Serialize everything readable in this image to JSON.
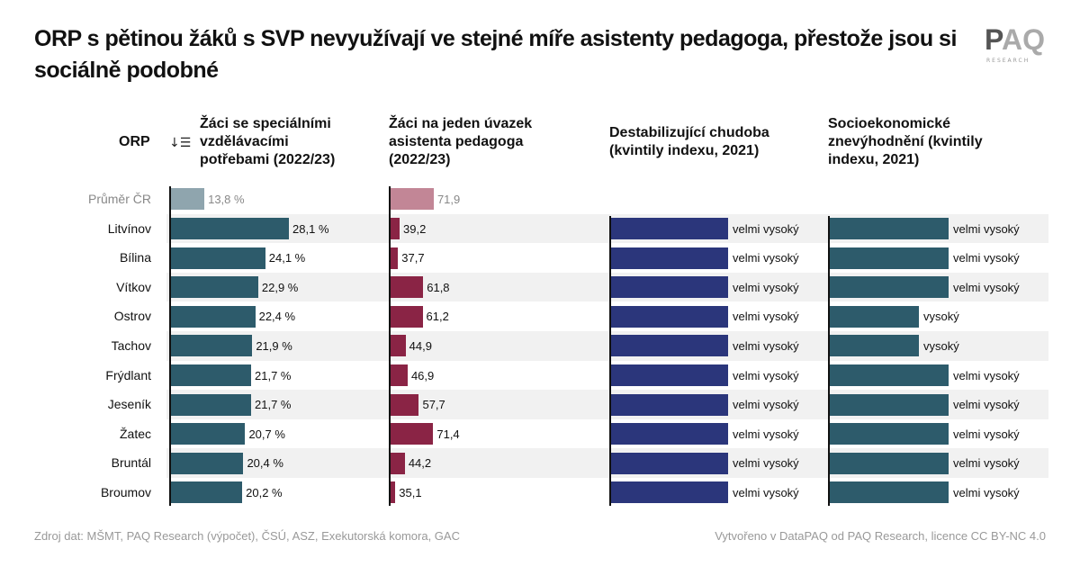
{
  "title": "ORP s pětinou žáků s SVP nevyužívají ve stejné míře asistenty pedagoga, přestože jsou si sociálně podobné",
  "logo": {
    "text": "PAQ",
    "subtext": "RESEARCH"
  },
  "footer": {
    "source": "Zdroj dat: MŠMT, PAQ Research (výpočet), ČSÚ, ASZ, Exekutorská komora, GAC",
    "credit": "Vytvořeno v DataPAQ od PAQ Research, licence CC BY-NC 4.0"
  },
  "chart_data": {
    "type": "table",
    "columns": [
      {
        "header": "ORP"
      },
      {
        "header": "Žáci se speciálními vzdělávacími potřebami (2022/23)",
        "sorted": "descending",
        "unit": "%",
        "color": "#2d5b6b",
        "avg_color": "#8fa5ae"
      },
      {
        "header": "Žáci na jeden úvazek asistenta pedagoga (2022/23)",
        "color": "#8a2445",
        "avg_color": "#c28696"
      },
      {
        "header": "Destabilizující chudoba (kvintily indexu, 2021)",
        "color": "#2b367b"
      },
      {
        "header": "Socioekonomické znevýhodnění (kvintily indexu, 2021)",
        "color": "#2d5b6b"
      }
    ],
    "average": {
      "orp": "Průměr ČR",
      "svp": 13.8,
      "svp_label": "13,8 %",
      "ap": 71.9,
      "ap_label": "71,9"
    },
    "rows": [
      {
        "orp": "Litvínov",
        "svp": 28.1,
        "svp_label": "28,1 %",
        "ap": 39.2,
        "ap_label": "39,2",
        "chudoba": 5,
        "chudoba_label": "velmi vysoký",
        "znev": 5,
        "znev_label": "velmi vysoký"
      },
      {
        "orp": "Bílina",
        "svp": 24.1,
        "svp_label": "24,1 %",
        "ap": 37.7,
        "ap_label": "37,7",
        "chudoba": 5,
        "chudoba_label": "velmi vysoký",
        "znev": 5,
        "znev_label": "velmi vysoký"
      },
      {
        "orp": "Vítkov",
        "svp": 22.9,
        "svp_label": "22,9 %",
        "ap": 61.8,
        "ap_label": "61,8",
        "chudoba": 5,
        "chudoba_label": "velmi vysoký",
        "znev": 5,
        "znev_label": "velmi vysoký"
      },
      {
        "orp": "Ostrov",
        "svp": 22.4,
        "svp_label": "22,4 %",
        "ap": 61.2,
        "ap_label": "61,2",
        "chudoba": 5,
        "chudoba_label": "velmi vysoký",
        "znev": 4,
        "znev_label": "vysoký"
      },
      {
        "orp": "Tachov",
        "svp": 21.9,
        "svp_label": "21,9 %",
        "ap": 44.9,
        "ap_label": "44,9",
        "chudoba": 5,
        "chudoba_label": "velmi vysoký",
        "znev": 4,
        "znev_label": "vysoký"
      },
      {
        "orp": "Frýdlant",
        "svp": 21.7,
        "svp_label": "21,7 %",
        "ap": 46.9,
        "ap_label": "46,9",
        "chudoba": 5,
        "chudoba_label": "velmi vysoký",
        "znev": 5,
        "znev_label": "velmi vysoký"
      },
      {
        "orp": "Jeseník",
        "svp": 21.7,
        "svp_label": "21,7 %",
        "ap": 57.7,
        "ap_label": "57,7",
        "chudoba": 5,
        "chudoba_label": "velmi vysoký",
        "znev": 5,
        "znev_label": "velmi vysoký"
      },
      {
        "orp": "Žatec",
        "svp": 20.7,
        "svp_label": "20,7 %",
        "ap": 71.4,
        "ap_label": "71,4",
        "chudoba": 5,
        "chudoba_label": "velmi vysoký",
        "znev": 5,
        "znev_label": "velmi vysoký"
      },
      {
        "orp": "Bruntál",
        "svp": 20.4,
        "svp_label": "20,4 %",
        "ap": 44.2,
        "ap_label": "44,2",
        "chudoba": 5,
        "chudoba_label": "velmi vysoký",
        "znev": 5,
        "znev_label": "velmi vysoký"
      },
      {
        "orp": "Broumov",
        "svp": 20.2,
        "svp_label": "20,2 %",
        "ap": 35.1,
        "ap_label": "35,1",
        "chudoba": 5,
        "chudoba_label": "velmi vysoký",
        "znev": 5,
        "znev_label": "velmi vysoký"
      }
    ]
  }
}
